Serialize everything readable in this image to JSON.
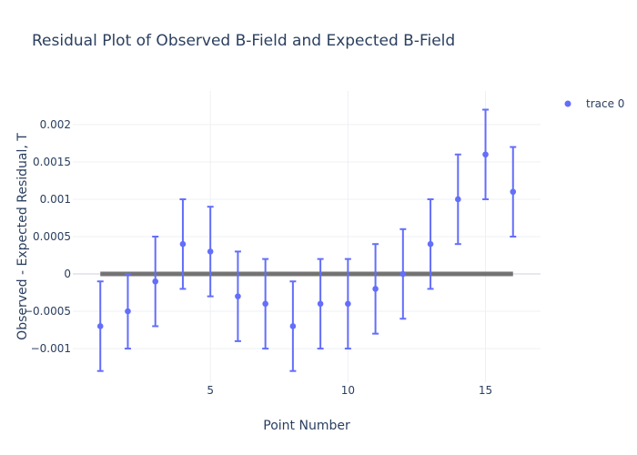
{
  "chart_data": {
    "type": "scatter",
    "title": "Residual Plot of Observed B-Field and Expected B-Field",
    "xlabel": "Point Number",
    "ylabel": "Observed - Expected Residual, T",
    "xlim": [
      0,
      17
    ],
    "ylim": [
      -0.00145,
      0.00245
    ],
    "x_ticks": [
      5,
      10,
      15
    ],
    "x_tick_labels": [
      "5",
      "10",
      "15"
    ],
    "y_ticks": [
      -0.001,
      -0.0005,
      0,
      0.0005,
      0.001,
      0.0015,
      0.002
    ],
    "y_tick_labels": [
      "−0.001",
      "−0.0005",
      "0",
      "0.0005",
      "0.001",
      "0.0015",
      "0.002"
    ],
    "grid": true,
    "legend_position": "top-right",
    "series": [
      {
        "name": "trace 0",
        "color": "#636efa",
        "x": [
          1,
          2,
          3,
          4,
          5,
          6,
          7,
          8,
          9,
          10,
          11,
          12,
          13,
          14,
          15,
          16
        ],
        "y": [
          -0.0007,
          -0.0005,
          -0.0001,
          0.0004,
          0.0003,
          -0.0003,
          -0.0004,
          -0.0007,
          -0.0004,
          -0.0004,
          -0.0002,
          0.0,
          0.0004,
          0.001,
          0.0016,
          0.0011
        ],
        "error": [
          0.0006,
          0.0005,
          0.0006,
          0.0006,
          0.0006,
          0.0006,
          0.0006,
          0.0006,
          0.0006,
          0.0006,
          0.0006,
          0.0006,
          0.0006,
          0.0006,
          0.0006,
          0.0006
        ]
      }
    ],
    "reference_line": {
      "x": [
        1,
        16
      ],
      "y": [
        0,
        0
      ],
      "color": "#555555"
    }
  }
}
